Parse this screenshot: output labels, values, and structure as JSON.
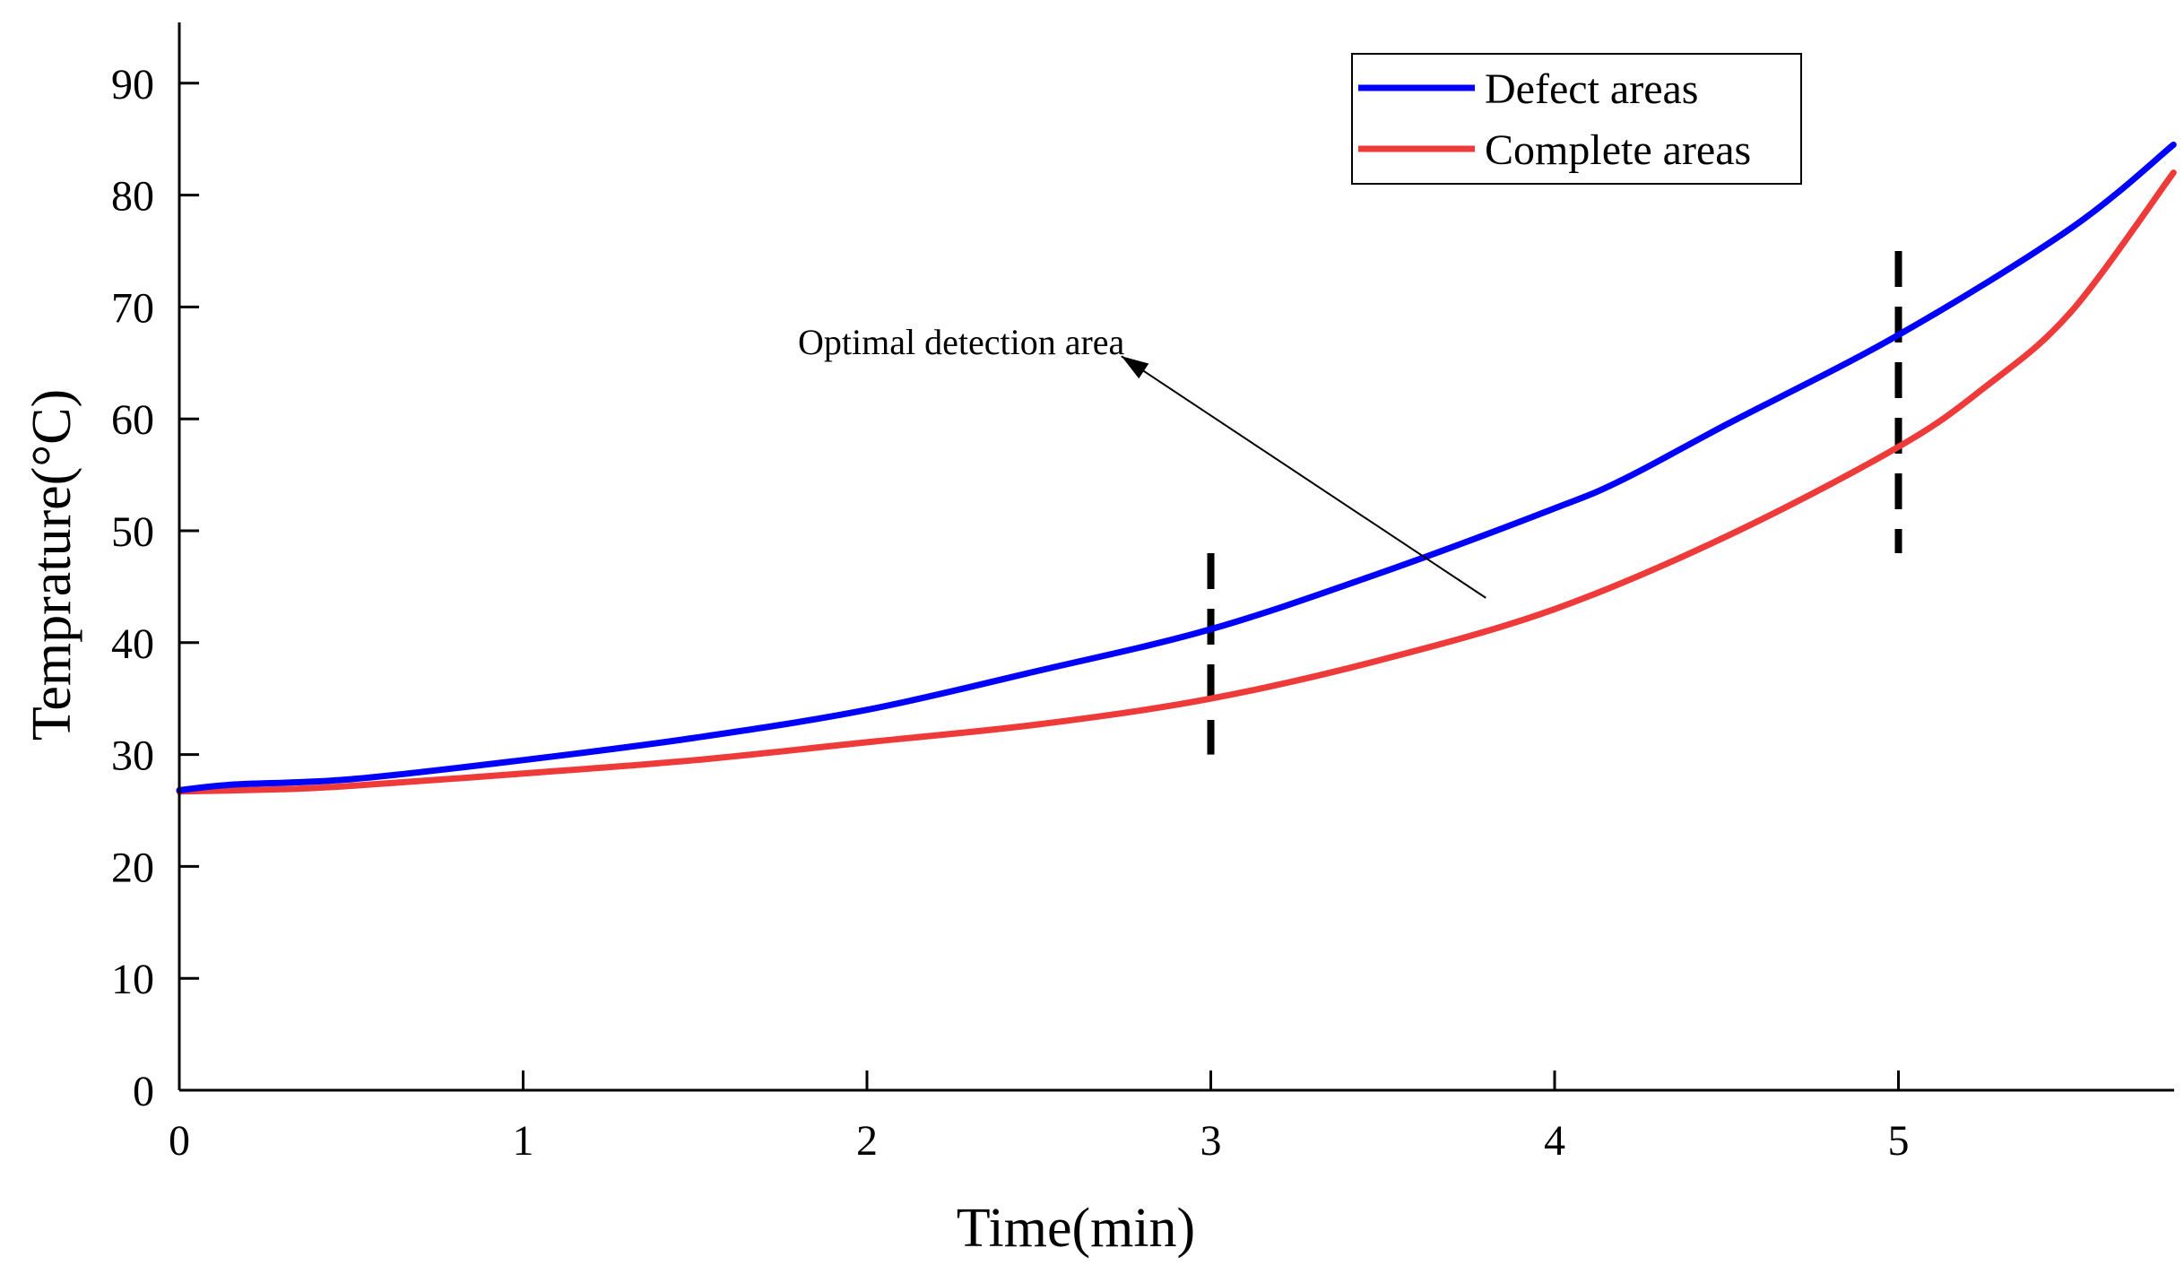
{
  "chart_data": {
    "type": "line",
    "title": "",
    "xlabel": "Time(min)",
    "ylabel": "Temprature(°C)",
    "xlim": [
      0,
      5.8
    ],
    "ylim": [
      0,
      95
    ],
    "xticks": [
      0,
      1,
      2,
      3,
      4,
      5
    ],
    "yticks": [
      0,
      10,
      20,
      30,
      40,
      50,
      60,
      70,
      80,
      90
    ],
    "legend_position": "top-right",
    "series": [
      {
        "name": "Defect areas",
        "color": "#0000ff",
        "x": [
          0,
          0.15,
          0.5,
          1.0,
          1.5,
          2.0,
          2.5,
          3.0,
          3.5,
          4.0,
          4.2,
          4.5,
          5.0,
          5.5,
          5.8
        ],
        "y": [
          26.8,
          27.3,
          27.8,
          29.5,
          31.5,
          34.0,
          37.5,
          41.2,
          46.3,
          52.0,
          54.6,
          59.5,
          67.5,
          77.0,
          84.5
        ]
      },
      {
        "name": "Complete areas",
        "color": "#ef3a3a",
        "x": [
          0,
          0.3,
          0.5,
          1.0,
          1.5,
          2.0,
          2.5,
          3.0,
          3.5,
          4.0,
          4.5,
          5.0,
          5.25,
          5.5,
          5.8
        ],
        "y": [
          26.7,
          26.9,
          27.2,
          28.3,
          29.5,
          31.1,
          32.7,
          35.0,
          38.5,
          43.0,
          49.5,
          57.5,
          62.8,
          69.5,
          82.0
        ]
      }
    ],
    "markers": [
      {
        "x": 3,
        "y_from": 30,
        "y_to": 48
      },
      {
        "x": 5,
        "y_from": 48,
        "y_to": 75
      }
    ],
    "annotation": {
      "text": "Optimal detection area",
      "arrow_from": [
        3.8,
        44
      ],
      "arrow_to": [
        2.74,
        65.6
      ]
    }
  }
}
